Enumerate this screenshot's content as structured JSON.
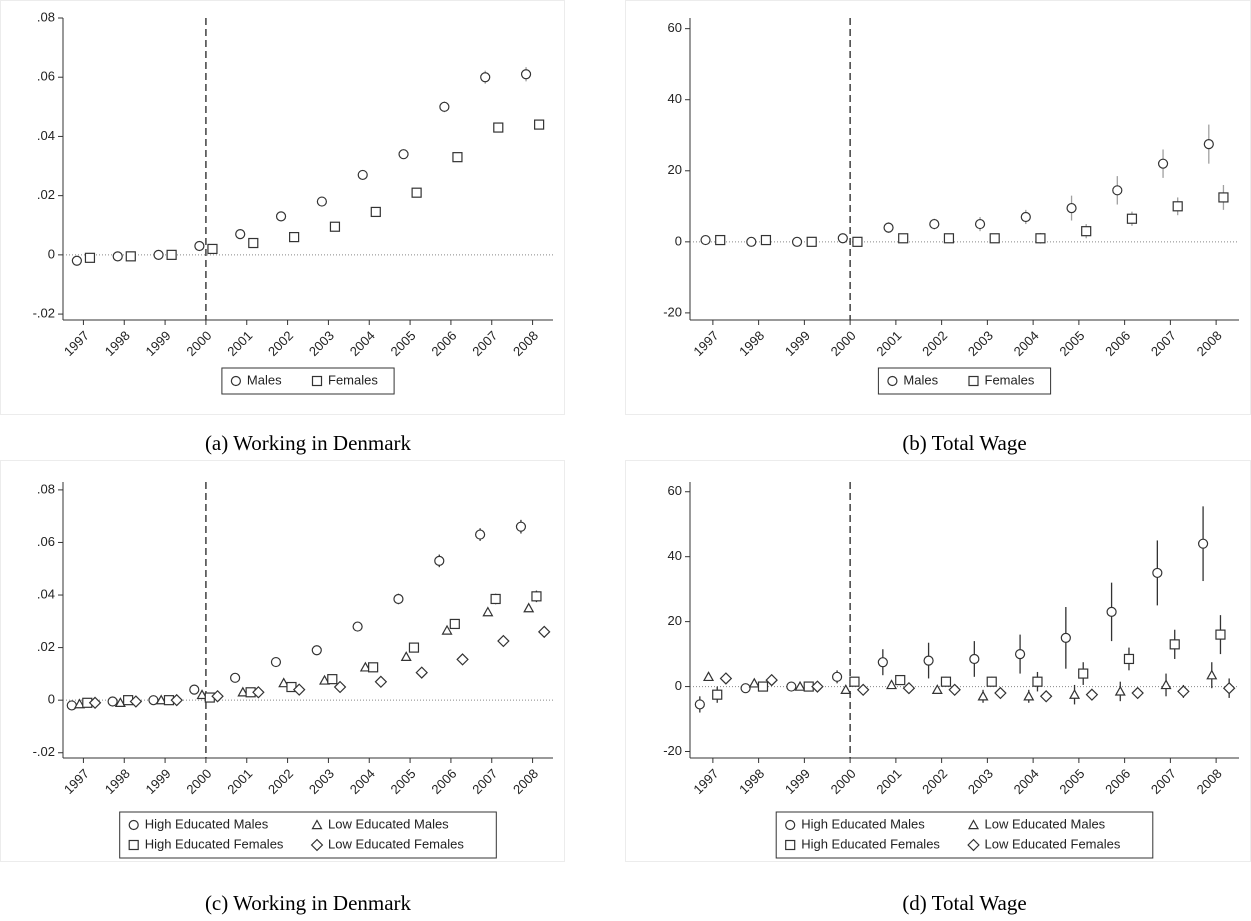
{
  "chart_data": [
    {
      "type": "scatter",
      "caption": "(a) Working in Denmark",
      "categories": [
        "1997",
        "1998",
        "1999",
        "2000",
        "2001",
        "2002",
        "2003",
        "2004",
        "2005",
        "2006",
        "2007",
        "2008"
      ],
      "ylim": [
        -0.022,
        0.08
      ],
      "yticks": [
        {
          "value": -0.02,
          "label": "-.02"
        },
        0,
        {
          "value": 0.02,
          "label": ".02"
        },
        {
          "value": 0.04,
          "label": ".04"
        },
        {
          "value": 0.06,
          "label": ".06"
        },
        {
          "value": 0.08,
          "label": ".08"
        }
      ],
      "vline": "2000",
      "legend_columns": 2,
      "error_color": "#a0a0a0",
      "series": [
        {
          "name": "Males",
          "marker": "circle",
          "color": "#333333",
          "values": [
            -0.002,
            -0.0005,
            0,
            0.003,
            0.007,
            0.013,
            0.018,
            0.027,
            0.034,
            0.05,
            0.06,
            0.061
          ],
          "errors": [
            0.0008,
            0.0006,
            0.0005,
            0.0008,
            0.0008,
            0.0009,
            0.001,
            0.001,
            0.0012,
            0.0018,
            0.0022,
            0.0024
          ]
        },
        {
          "name": "Females",
          "marker": "square",
          "color": "#333333",
          "values": [
            -0.001,
            -0.0005,
            0,
            0.002,
            0.004,
            0.006,
            0.0095,
            0.0145,
            0.021,
            0.033,
            0.043,
            0.044
          ],
          "errors": [
            0.0006,
            0.0005,
            0.0005,
            0.0006,
            0.0007,
            0.0007,
            0.0008,
            0.0009,
            0.001,
            0.0012,
            0.0014,
            0.0016
          ]
        }
      ]
    },
    {
      "type": "scatter",
      "caption": "(b) Total Wage",
      "categories": [
        "1997",
        "1998",
        "1999",
        "2000",
        "2001",
        "2002",
        "2003",
        "2004",
        "2005",
        "2006",
        "2007",
        "2008"
      ],
      "ylim": [
        -22,
        63
      ],
      "yticks": [
        -20,
        0,
        20,
        40,
        60
      ],
      "vline": "2000",
      "legend_columns": 2,
      "error_color": "#a0a0a0",
      "series": [
        {
          "name": "Males",
          "marker": "circle",
          "color": "#333333",
          "values": [
            0.5,
            0,
            0,
            1,
            4,
            5,
            5,
            7,
            9.5,
            14.5,
            22,
            27.5
          ],
          "errors": [
            0.5,
            0.5,
            0.5,
            0.8,
            1.5,
            1.5,
            2,
            2,
            3.5,
            4,
            4,
            5.5
          ]
        },
        {
          "name": "Females",
          "marker": "square",
          "color": "#333333",
          "values": [
            0.5,
            0.5,
            0,
            0,
            1,
            1,
            1,
            1,
            3,
            6.5,
            10,
            12.5
          ],
          "errors": [
            0.5,
            0.5,
            0.5,
            0.5,
            1,
            1,
            1,
            1.5,
            2,
            2,
            2.5,
            3.5
          ]
        }
      ]
    },
    {
      "type": "scatter",
      "caption": "(c) Working in Denmark",
      "categories": [
        "1997",
        "1998",
        "1999",
        "2000",
        "2001",
        "2002",
        "2003",
        "2004",
        "2005",
        "2006",
        "2007",
        "2008"
      ],
      "ylim": [
        -0.022,
        0.083
      ],
      "yticks": [
        {
          "value": -0.02,
          "label": "-.02"
        },
        0,
        {
          "value": 0.02,
          "label": ".02"
        },
        {
          "value": 0.04,
          "label": ".04"
        },
        {
          "value": 0.06,
          "label": ".06"
        },
        {
          "value": 0.08,
          "label": ".08"
        }
      ],
      "vline": "2000",
      "legend_columns": 2,
      "error_color": "#333333",
      "series": [
        {
          "name": "High Educated Males",
          "marker": "circle",
          "color": "#333333",
          "values": [
            -0.002,
            -0.0005,
            0,
            0.004,
            0.0085,
            0.0145,
            0.019,
            0.028,
            0.0385,
            0.053,
            0.063,
            0.066
          ],
          "errors": [
            0.0008,
            0.0007,
            0.0006,
            0.001,
            0.001,
            0.0012,
            0.0014,
            0.0016,
            0.002,
            0.0024,
            0.0024,
            0.0026
          ]
        },
        {
          "name": "Low Educated Males",
          "marker": "triangle",
          "color": "#333333",
          "values": [
            -0.0015,
            -0.001,
            0,
            0.002,
            0.003,
            0.0065,
            0.0075,
            0.0125,
            0.0165,
            0.0265,
            0.0335,
            0.035
          ],
          "errors": [
            0.0005,
            0.0005,
            0.0004,
            0.0005,
            0.0005,
            0.0006,
            0.0006,
            0.0007,
            0.0008,
            0.0009,
            0.001,
            0.0012
          ]
        },
        {
          "name": "High Educated Females",
          "marker": "square",
          "color": "#333333",
          "values": [
            -0.001,
            0,
            0,
            0.001,
            0.003,
            0.005,
            0.008,
            0.0125,
            0.02,
            0.029,
            0.0385,
            0.0395
          ],
          "errors": [
            0.0008,
            0.0006,
            0.0005,
            0.0008,
            0.0008,
            0.0009,
            0.001,
            0.0011,
            0.0014,
            0.0018,
            0.002,
            0.0022
          ]
        },
        {
          "name": "Low Educated Females",
          "marker": "diamond",
          "color": "#333333",
          "values": [
            -0.001,
            -0.0005,
            0,
            0.0015,
            0.003,
            0.004,
            0.005,
            0.007,
            0.0105,
            0.0155,
            0.0225,
            0.026
          ],
          "errors": [
            0.0004,
            0.0004,
            0.0004,
            0.0004,
            0.0005,
            0.0005,
            0.0005,
            0.0006,
            0.0007,
            0.0008,
            0.0009,
            0.001
          ]
        }
      ]
    },
    {
      "type": "scatter",
      "caption": "(d) Total Wage",
      "categories": [
        "1997",
        "1998",
        "1999",
        "2000",
        "2001",
        "2002",
        "2003",
        "2004",
        "2005",
        "2006",
        "2007",
        "2008"
      ],
      "ylim": [
        -22,
        63
      ],
      "yticks": [
        -20,
        0,
        20,
        40,
        60
      ],
      "vline": "2000",
      "legend_columns": 2,
      "error_color": "#333333",
      "series": [
        {
          "name": "High Educated Males",
          "marker": "circle",
          "color": "#333333",
          "values": [
            -5.5,
            -0.5,
            0,
            3,
            7.5,
            8,
            8.5,
            10,
            15,
            23,
            35,
            44
          ],
          "errors": [
            2.5,
            1,
            0.5,
            2,
            4,
            5.5,
            5.5,
            6,
            9.5,
            9,
            10,
            11.5
          ]
        },
        {
          "name": "Low Educated Males",
          "marker": "triangle",
          "color": "#333333",
          "values": [
            3,
            1,
            0,
            -1,
            0.5,
            -1,
            -3,
            -3,
            -2.5,
            -1.5,
            0.5,
            3.5
          ],
          "errors": [
            1,
            1,
            0.5,
            1,
            1,
            1,
            2,
            2,
            3,
            3,
            3.5,
            4
          ]
        },
        {
          "name": "High Educated Females",
          "marker": "square",
          "color": "#333333",
          "values": [
            -2.5,
            0,
            0,
            1.5,
            2,
            1.5,
            1.5,
            1.5,
            4,
            8.5,
            13,
            16
          ],
          "errors": [
            2.5,
            1,
            0.5,
            1,
            1,
            1.5,
            1.5,
            3,
            3.5,
            3.5,
            4.5,
            6
          ]
        },
        {
          "name": "Low Educated Females",
          "marker": "diamond",
          "color": "#333333",
          "values": [
            2.5,
            2,
            0,
            -1,
            -0.5,
            -1,
            -2,
            -3,
            -2.5,
            -2,
            -1.5,
            -0.5
          ],
          "errors": [
            1,
            0.5,
            0.5,
            0.5,
            0.5,
            1,
            1,
            1.5,
            1.5,
            1.5,
            2,
            3
          ]
        }
      ]
    }
  ]
}
